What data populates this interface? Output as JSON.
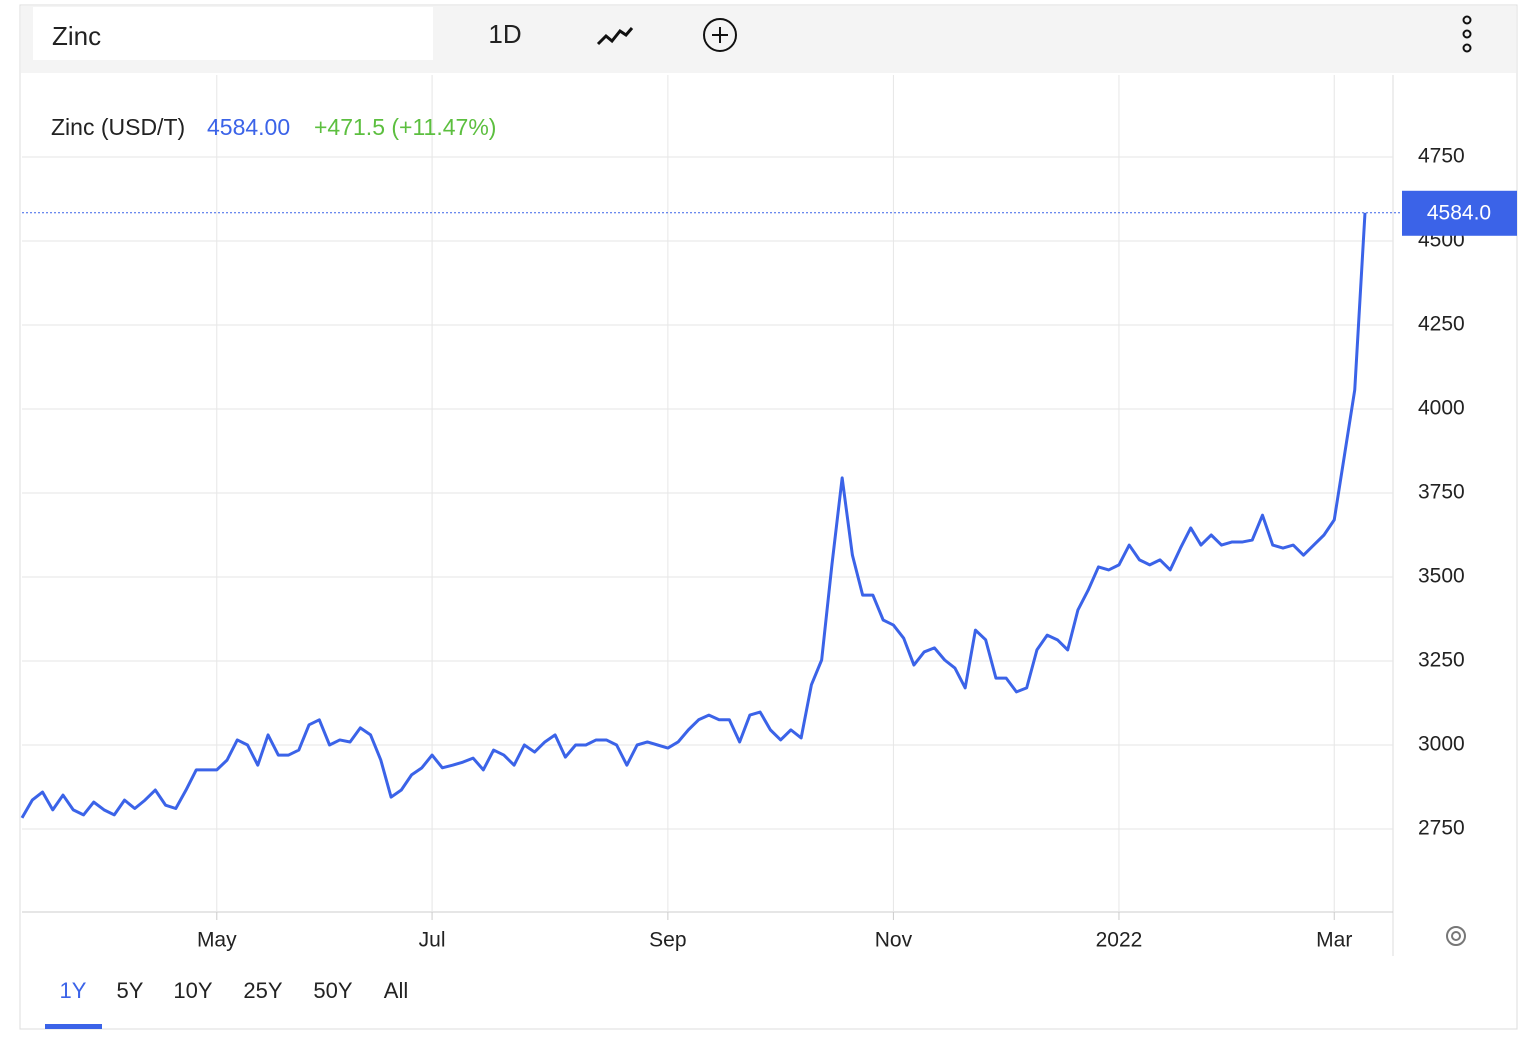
{
  "toolbar": {
    "symbol": "Zinc",
    "interval": "1D"
  },
  "ranges": [
    "1Y",
    "5Y",
    "10Y",
    "25Y",
    "50Y",
    "All"
  ],
  "chart_data": {
    "type": "line",
    "legend_name": "Zinc (USD/T)",
    "price": "4584.00",
    "change": "+471.5 (+11.47%)",
    "last_label": "4584.0",
    "categories": [
      null,
      null,
      null,
      null,
      null,
      null,
      null,
      null,
      null,
      null,
      null,
      null,
      null,
      null,
      null,
      null,
      null,
      null,
      null,
      "May",
      null,
      null,
      null,
      null,
      null,
      null,
      null,
      null,
      null,
      null,
      null,
      null,
      null,
      null,
      null,
      null,
      null,
      null,
      null,
      null,
      "Jul",
      null,
      null,
      null,
      null,
      null,
      null,
      null,
      null,
      null,
      null,
      null,
      null,
      null,
      null,
      null,
      null,
      null,
      null,
      null,
      null,
      null,
      null,
      "Sep",
      null,
      null,
      null,
      null,
      null,
      null,
      null,
      null,
      null,
      null,
      null,
      null,
      null,
      null,
      null,
      null,
      null,
      null,
      null,
      null,
      null,
      "Nov",
      null,
      null,
      null,
      null,
      null,
      null,
      null,
      null,
      null,
      null,
      null,
      null,
      null,
      null,
      null,
      null,
      null,
      null,
      null,
      null,
      null,
      "2022",
      null,
      null,
      null,
      null,
      null,
      null,
      null,
      null,
      null,
      null,
      null,
      null,
      null,
      null,
      null,
      null,
      null,
      null,
      null,
      null,
      "Mar",
      null,
      null,
      null
    ],
    "series": [
      {
        "name": "Zinc",
        "color": "#3b63e8",
        "values": [
          2783,
          2836,
          2860,
          2807,
          2851,
          2807,
          2792,
          2830,
          2807,
          2792,
          2836,
          2811,
          2836,
          2866,
          2821,
          2811,
          2866,
          2926,
          2926,
          2926,
          2955,
          3015,
          3000,
          2940,
          3030,
          2970,
          2970,
          2985,
          3060,
          3075,
          3000,
          3015,
          3009,
          3051,
          3030,
          2955,
          2845,
          2866,
          2911,
          2932,
          2970,
          2932,
          2940,
          2949,
          2961,
          2926,
          2985,
          2970,
          2940,
          3000,
          2979,
          3009,
          3030,
          2964,
          3000,
          3000,
          3015,
          3015,
          3000,
          2940,
          3000,
          3009,
          3000,
          2991,
          3009,
          3045,
          3075,
          3089,
          3075,
          3075,
          3009,
          3089,
          3098,
          3045,
          3015,
          3045,
          3021,
          3179,
          3253,
          3536,
          3795,
          3565,
          3446,
          3446,
          3372,
          3357,
          3318,
          3238,
          3277,
          3289,
          3253,
          3229,
          3170,
          3342,
          3313,
          3199,
          3199,
          3158,
          3170,
          3283,
          3327,
          3313,
          3283,
          3402,
          3461,
          3530,
          3521,
          3536,
          3595,
          3551,
          3536,
          3551,
          3521,
          3586,
          3646,
          3595,
          3625,
          3595,
          3604,
          3604,
          3610,
          3684,
          3595,
          3586,
          3595,
          3565,
          3595,
          3625,
          3670,
          3863,
          4057,
          4584
        ]
      }
    ],
    "ylim": [
      2500,
      5000
    ],
    "yticks": [
      2750,
      3000,
      3250,
      3500,
      3750,
      4000,
      4250,
      4500,
      4750
    ],
    "grid": true
  }
}
